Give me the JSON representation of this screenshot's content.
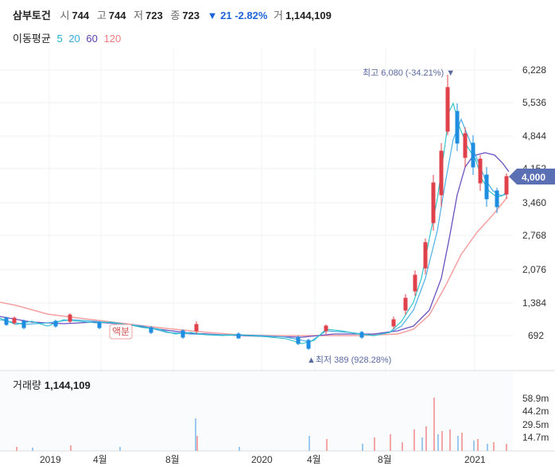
{
  "header": {
    "stock_name": "삼부토건",
    "open_label": "시",
    "open": "744",
    "high_label": "고",
    "high": "744",
    "low_label": "저",
    "low": "723",
    "close_label": "종",
    "close": "723",
    "change_arrow": "▼",
    "change": "21 -2.82%",
    "volume_label": "거",
    "volume": "1,144,109"
  },
  "moving_average": {
    "label": "이동평균",
    "periods": [
      {
        "value": "5",
        "color": "#1ab3c8"
      },
      {
        "value": "20",
        "color": "#38a8e0"
      },
      {
        "value": "60",
        "color": "#5a3fb0"
      },
      {
        "value": "120",
        "color": "#f07a7a"
      }
    ]
  },
  "price_axis": {
    "ticks": [
      "6,228",
      "5,536",
      "4,844",
      "4,152",
      "3,460",
      "2,768",
      "2,076",
      "1,384",
      "692"
    ],
    "current_price": "4,000"
  },
  "annotations": {
    "high": "최고 6,080 (-34.21%) ▼",
    "low": "▲최저 389 (928.28%)",
    "event": "액분"
  },
  "volume_panel": {
    "label": "거래량",
    "value": "1,144,109",
    "ticks": [
      "58.9m",
      "44.2m",
      "29.5m",
      "14.7m"
    ]
  },
  "x_axis": {
    "ticks": [
      "2019",
      "4월",
      "8월",
      "2020",
      "4월",
      "8월",
      "2021"
    ]
  },
  "colors": {
    "up": "#e0424b",
    "down": "#1f8ee0",
    "grid": "#eef0f3",
    "current_badge": "#5b6fb5"
  }
}
